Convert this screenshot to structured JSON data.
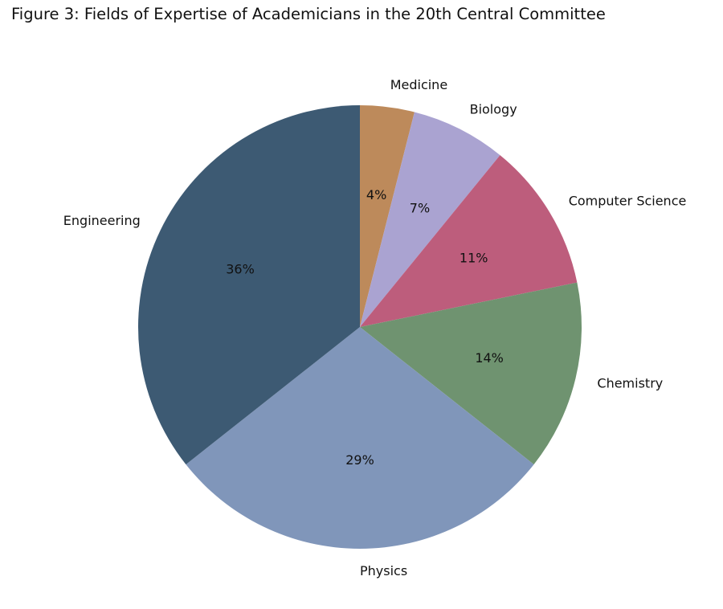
{
  "chart_data": {
    "type": "pie",
    "title": "Figure 3: Fields of Expertise of Academicians in the 20th Central Committee",
    "slices": [
      {
        "label": "Medicine",
        "value": 4,
        "pct_label": "4%",
        "color": "#bd8a5b"
      },
      {
        "label": "Biology",
        "value": 7,
        "pct_label": "7%",
        "color": "#aaa3d1"
      },
      {
        "label": "Computer Science",
        "value": 11,
        "pct_label": "11%",
        "color": "#bd5d7c"
      },
      {
        "label": "Chemistry",
        "value": 14,
        "pct_label": "14%",
        "color": "#6f9370"
      },
      {
        "label": "Physics",
        "value": 29,
        "pct_label": "29%",
        "color": "#8096ba"
      },
      {
        "label": "Engineering",
        "value": 36,
        "pct_label": "36%",
        "color": "#3d5a73"
      }
    ],
    "start_angle_deg": 90,
    "clockwise": true,
    "label_distance": 1.1,
    "pct_distance": 0.6,
    "legend": "none",
    "grid": false,
    "text_color": "#111111",
    "background_color": "#ffffff"
  }
}
